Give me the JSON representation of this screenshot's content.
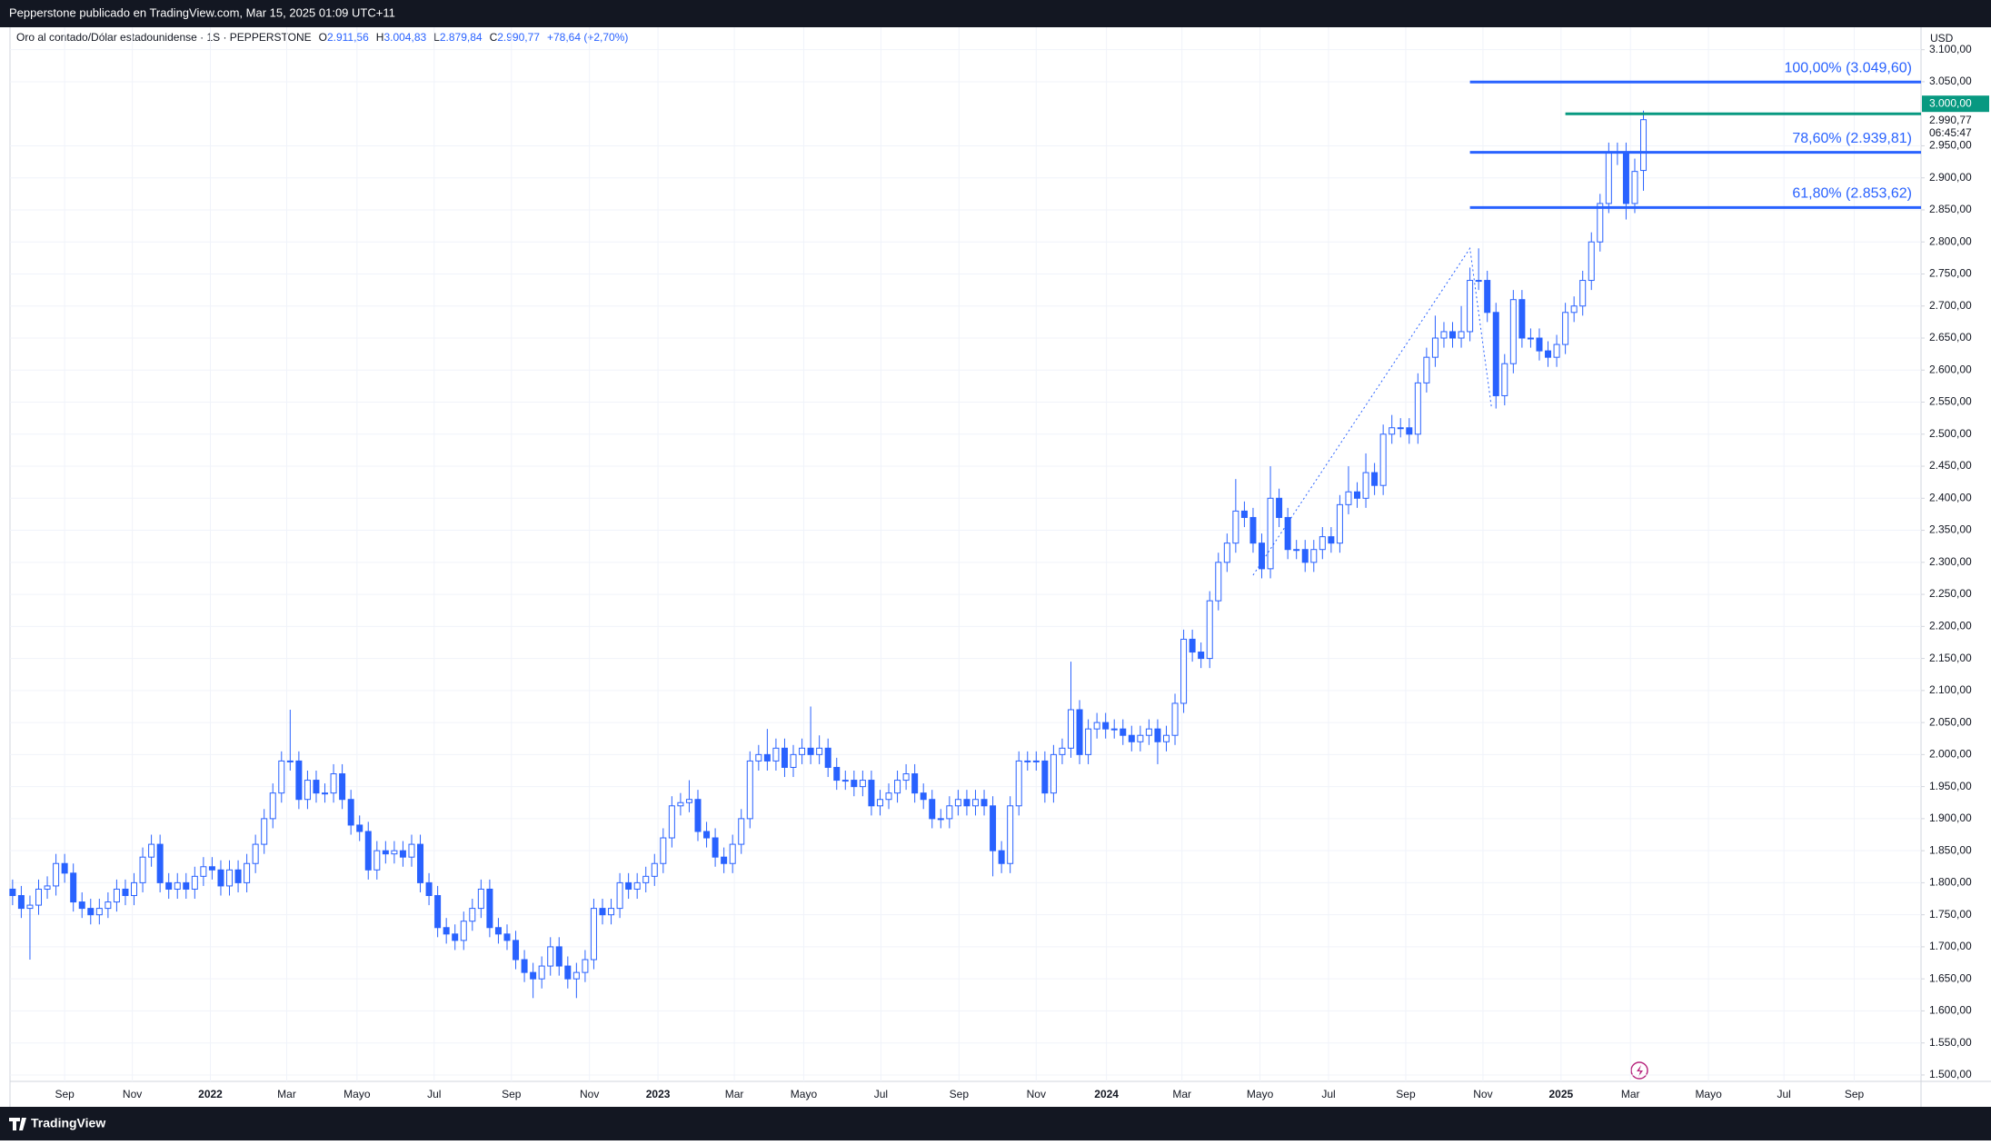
{
  "header": {
    "text": "Pepperstone publicado en TradingView.com, Mar 15, 2025 01:09 UTC+11"
  },
  "footer": {
    "brand": "TradingView"
  },
  "chart_data": {
    "type": "candlestick",
    "legend": {
      "title": "Oro al contado/Dólar estadounidense · 1S · PEPPERSTONE",
      "fields": [
        {
          "key": "O",
          "value": "2.911,56"
        },
        {
          "key": "H",
          "value": "3.004,83"
        },
        {
          "key": "L",
          "value": "2.879,84"
        },
        {
          "key": "C",
          "value": "2.990,77"
        }
      ],
      "change": "+78,64 (+2,70%)"
    },
    "currency": "USD",
    "color": "#2962ff",
    "up_fill": "#ffffff",
    "grid": true,
    "ylim": [
      1490,
      3135
    ],
    "xlim": [
      -0.3,
      220
    ],
    "yticks": [
      {
        "value": 1500,
        "label": "1.500,00"
      },
      {
        "value": 1550,
        "label": "1.550,00"
      },
      {
        "value": 1600,
        "label": "1.600,00"
      },
      {
        "value": 1650,
        "label": "1.650,00"
      },
      {
        "value": 1700,
        "label": "1.700,00"
      },
      {
        "value": 1750,
        "label": "1.750,00"
      },
      {
        "value": 1800,
        "label": "1.800,00"
      },
      {
        "value": 1850,
        "label": "1.850,00"
      },
      {
        "value": 1900,
        "label": "1.900,00"
      },
      {
        "value": 1950,
        "label": "1.950,00"
      },
      {
        "value": 2000,
        "label": "2.000,00"
      },
      {
        "value": 2050,
        "label": "2.050,00"
      },
      {
        "value": 2100,
        "label": "2.100,00"
      },
      {
        "value": 2150,
        "label": "2.150,00"
      },
      {
        "value": 2200,
        "label": "2.200,00"
      },
      {
        "value": 2250,
        "label": "2.250,00"
      },
      {
        "value": 2300,
        "label": "2.300,00"
      },
      {
        "value": 2350,
        "label": "2.350,00"
      },
      {
        "value": 2400,
        "label": "2.400,00"
      },
      {
        "value": 2450,
        "label": "2.450,00"
      },
      {
        "value": 2500,
        "label": "2.500,00"
      },
      {
        "value": 2550,
        "label": "2.550,00"
      },
      {
        "value": 2600,
        "label": "2.600,00"
      },
      {
        "value": 2650,
        "label": "2.650,00"
      },
      {
        "value": 2700,
        "label": "2.700,00"
      },
      {
        "value": 2750,
        "label": "2.750,00"
      },
      {
        "value": 2800,
        "label": "2.800,00"
      },
      {
        "value": 2850,
        "label": "2.850,00"
      },
      {
        "value": 2900,
        "label": "2.900,00"
      },
      {
        "value": 2950,
        "label": "2.950,00"
      },
      {
        "value": 3050,
        "label": "3.050,00"
      },
      {
        "value": 3100,
        "label": "3.100,00"
      }
    ],
    "xticks": [
      {
        "value": 6,
        "label": "Sep"
      },
      {
        "value": 13.8,
        "label": "Nov"
      },
      {
        "value": 22.8,
        "label": "2022"
      },
      {
        "value": 31.6,
        "label": "Mar"
      },
      {
        "value": 39.7,
        "label": "Mayo"
      },
      {
        "value": 48.6,
        "label": "Jul"
      },
      {
        "value": 57.5,
        "label": "Sep"
      },
      {
        "value": 66.5,
        "label": "Nov"
      },
      {
        "value": 74.4,
        "label": "2023"
      },
      {
        "value": 83.2,
        "label": "Mar"
      },
      {
        "value": 91.2,
        "label": "Mayo"
      },
      {
        "value": 100.1,
        "label": "Jul"
      },
      {
        "value": 109.1,
        "label": "Sep"
      },
      {
        "value": 118,
        "label": "Nov"
      },
      {
        "value": 126.1,
        "label": "2024"
      },
      {
        "value": 134.8,
        "label": "Mar"
      },
      {
        "value": 143.8,
        "label": "Mayo"
      },
      {
        "value": 151.7,
        "label": "Jul"
      },
      {
        "value": 160.6,
        "label": "Sep"
      },
      {
        "value": 169.5,
        "label": "Nov"
      },
      {
        "value": 178.5,
        "label": "2025"
      },
      {
        "value": 186.5,
        "label": "Mar"
      },
      {
        "value": 195.5,
        "label": "Mayo"
      },
      {
        "value": 204.2,
        "label": "Jul"
      },
      {
        "value": 212.3,
        "label": "Sep"
      }
    ],
    "open": [
      1790,
      1780,
      1760,
      1765,
      1790,
      1795,
      1830,
      1815,
      1770,
      1760,
      1750,
      1760,
      1770,
      1790,
      1780,
      1800,
      1840,
      1860,
      1800,
      1790,
      1800,
      1790,
      1810,
      1825,
      1820,
      1795,
      1820,
      1800,
      1830,
      1860,
      1900,
      1940,
      1990,
      1990,
      1930,
      1960,
      1940,
      1940,
      1970,
      1930,
      1890,
      1880,
      1820,
      1850,
      1845,
      1850,
      1840,
      1860,
      1800,
      1780,
      1730,
      1720,
      1710,
      1740,
      1760,
      1790,
      1730,
      1720,
      1710,
      1680,
      1660,
      1650,
      1670,
      1700,
      1670,
      1650,
      1660,
      1680,
      1760,
      1750,
      1760,
      1800,
      1790,
      1800,
      1810,
      1830,
      1870,
      1920,
      1925,
      1930,
      1880,
      1870,
      1840,
      1830,
      1860,
      1900,
      1990,
      2000,
      1990,
      2010,
      1980,
      2000,
      2010,
      2000,
      2010,
      1980,
      1960,
      1960,
      1950,
      1960,
      1920,
      1930,
      1940,
      1960,
      1970,
      1940,
      1930,
      1900,
      1900,
      1920,
      1930,
      1920,
      1930,
      1920,
      1850,
      1830,
      1920,
      1990,
      1990,
      1990,
      1940,
      2000,
      2010,
      2070,
      2000,
      2040,
      2050,
      2040,
      2040,
      2030,
      2020,
      2030,
      2040,
      2020,
      2030,
      2080,
      2180,
      2160,
      2150,
      2240,
      2300,
      2330,
      2380,
      2370,
      2330,
      2290,
      2400,
      2370,
      2320,
      2320,
      2300,
      2320,
      2340,
      2330,
      2390,
      2410,
      2400,
      2440,
      2420,
      2500,
      2510,
      2510,
      2500,
      2580,
      2620,
      2650,
      2660,
      2650,
      2660,
      2740,
      2740,
      2690,
      2560,
      2610,
      2710,
      2650,
      2650,
      2630,
      2620,
      2640,
      2690,
      2700,
      2740,
      2800,
      2860,
      2940,
      2940,
      2860,
      2911.56
    ],
    "high": [
      1805,
      1795,
      1780,
      1805,
      1810,
      1845,
      1845,
      1830,
      1785,
      1775,
      1775,
      1785,
      1805,
      1805,
      1815,
      1855,
      1875,
      1875,
      1815,
      1815,
      1815,
      1825,
      1840,
      1840,
      1835,
      1835,
      1835,
      1845,
      1875,
      1915,
      1955,
      2005,
      2070,
      2005,
      1975,
      1975,
      1955,
      1985,
      1985,
      1945,
      1905,
      1895,
      1865,
      1865,
      1865,
      1865,
      1875,
      1875,
      1815,
      1795,
      1745,
      1735,
      1755,
      1775,
      1805,
      1805,
      1745,
      1735,
      1725,
      1695,
      1675,
      1685,
      1715,
      1715,
      1685,
      1675,
      1695,
      1775,
      1775,
      1775,
      1815,
      1815,
      1815,
      1825,
      1845,
      1885,
      1935,
      1940,
      1960,
      1945,
      1895,
      1885,
      1855,
      1875,
      1915,
      2005,
      2015,
      2040,
      2025,
      2025,
      2015,
      2025,
      2075,
      2030,
      2025,
      1995,
      1975,
      1975,
      1975,
      1975,
      1945,
      1955,
      1975,
      1985,
      1985,
      1955,
      1945,
      1915,
      1935,
      1945,
      1945,
      1945,
      1945,
      1935,
      1865,
      1935,
      2005,
      2005,
      2005,
      2005,
      2015,
      2025,
      2145,
      2085,
      2055,
      2065,
      2065,
      2055,
      2055,
      2045,
      2045,
      2055,
      2055,
      2045,
      2095,
      2195,
      2195,
      2175,
      2255,
      2315,
      2345,
      2430,
      2395,
      2385,
      2345,
      2450,
      2415,
      2385,
      2335,
      2335,
      2335,
      2355,
      2355,
      2405,
      2450,
      2425,
      2470,
      2455,
      2515,
      2530,
      2525,
      2525,
      2595,
      2635,
      2685,
      2675,
      2675,
      2700,
      2760,
      2790,
      2755,
      2705,
      2625,
      2725,
      2725,
      2665,
      2665,
      2645,
      2655,
      2705,
      2715,
      2755,
      2815,
      2875,
      2955,
      2955,
      2955,
      2930,
      3004.83
    ],
    "low": [
      1765,
      1745,
      1680,
      1750,
      1775,
      1780,
      1800,
      1755,
      1745,
      1735,
      1735,
      1745,
      1755,
      1765,
      1765,
      1785,
      1825,
      1785,
      1775,
      1775,
      1775,
      1775,
      1795,
      1805,
      1780,
      1780,
      1785,
      1785,
      1815,
      1845,
      1885,
      1925,
      1975,
      1915,
      1915,
      1925,
      1925,
      1925,
      1915,
      1875,
      1865,
      1805,
      1805,
      1830,
      1830,
      1825,
      1825,
      1785,
      1765,
      1715,
      1705,
      1695,
      1695,
      1725,
      1745,
      1715,
      1705,
      1695,
      1665,
      1645,
      1620,
      1635,
      1655,
      1655,
      1635,
      1620,
      1645,
      1665,
      1735,
      1735,
      1745,
      1775,
      1775,
      1785,
      1795,
      1815,
      1855,
      1905,
      1910,
      1865,
      1855,
      1825,
      1815,
      1815,
      1845,
      1885,
      1975,
      1975,
      1975,
      1965,
      1965,
      1985,
      1985,
      1985,
      1965,
      1945,
      1945,
      1935,
      1935,
      1905,
      1905,
      1915,
      1925,
      1945,
      1925,
      1915,
      1885,
      1885,
      1885,
      1905,
      1905,
      1905,
      1905,
      1810,
      1815,
      1815,
      1905,
      1975,
      1975,
      1925,
      1925,
      1985,
      1995,
      1985,
      1985,
      2025,
      2025,
      2025,
      2015,
      2005,
      2005,
      2015,
      1985,
      2005,
      2015,
      2065,
      2145,
      2135,
      2135,
      2225,
      2285,
      2315,
      2355,
      2315,
      2275,
      2275,
      2355,
      2305,
      2305,
      2285,
      2285,
      2305,
      2315,
      2315,
      2375,
      2385,
      2385,
      2405,
      2405,
      2485,
      2495,
      2485,
      2485,
      2565,
      2605,
      2635,
      2635,
      2635,
      2645,
      2725,
      2675,
      2540,
      2545,
      2595,
      2635,
      2635,
      2615,
      2605,
      2605,
      2625,
      2675,
      2685,
      2725,
      2785,
      2845,
      2920,
      2835,
      2845,
      2879.84
    ],
    "close": [
      1780,
      1760,
      1765,
      1790,
      1795,
      1830,
      1815,
      1770,
      1760,
      1750,
      1760,
      1770,
      1790,
      1780,
      1800,
      1840,
      1860,
      1800,
      1790,
      1800,
      1790,
      1810,
      1825,
      1820,
      1795,
      1820,
      1800,
      1830,
      1860,
      1900,
      1940,
      1990,
      1990,
      1930,
      1960,
      1940,
      1940,
      1970,
      1930,
      1890,
      1880,
      1820,
      1850,
      1845,
      1850,
      1840,
      1860,
      1800,
      1780,
      1730,
      1720,
      1710,
      1740,
      1760,
      1790,
      1730,
      1720,
      1710,
      1680,
      1660,
      1650,
      1670,
      1700,
      1670,
      1650,
      1660,
      1680,
      1760,
      1750,
      1760,
      1800,
      1790,
      1800,
      1810,
      1830,
      1870,
      1920,
      1925,
      1930,
      1880,
      1870,
      1840,
      1830,
      1860,
      1900,
      1990,
      2000,
      1990,
      2010,
      1980,
      2000,
      2010,
      2000,
      2010,
      1980,
      1960,
      1960,
      1950,
      1960,
      1920,
      1930,
      1940,
      1960,
      1970,
      1940,
      1930,
      1900,
      1900,
      1920,
      1930,
      1920,
      1930,
      1920,
      1850,
      1830,
      1920,
      1990,
      1990,
      1990,
      1940,
      2000,
      2010,
      2070,
      2000,
      2040,
      2050,
      2040,
      2040,
      2030,
      2020,
      2030,
      2040,
      2020,
      2030,
      2080,
      2180,
      2160,
      2150,
      2240,
      2300,
      2330,
      2380,
      2370,
      2330,
      2290,
      2400,
      2370,
      2320,
      2320,
      2300,
      2320,
      2340,
      2330,
      2390,
      2410,
      2400,
      2440,
      2420,
      2500,
      2510,
      2510,
      2500,
      2580,
      2620,
      2650,
      2660,
      2650,
      2660,
      2740,
      2740,
      2690,
      2560,
      2610,
      2710,
      2650,
      2650,
      2630,
      2620,
      2640,
      2690,
      2700,
      2740,
      2800,
      2860,
      2940,
      2940,
      2860,
      2910,
      2990.77
    ],
    "trend": {
      "x": [
        143,
        168,
        170.5
      ],
      "y": [
        2280,
        2790,
        2540
      ]
    },
    "fib_levels": [
      {
        "value": 3049.6,
        "label": "100,00% (3.049,60)",
        "start": 168
      },
      {
        "value": 2939.81,
        "label": "78,60% (2.939,81)",
        "start": 168
      },
      {
        "value": 2853.62,
        "label": "61,80% (2.853,62)",
        "start": 168
      }
    ],
    "price_line": {
      "value": 3000,
      "label": "3.000,00",
      "color": "#089981",
      "start": 179
    },
    "last_price": {
      "value": 2990.77,
      "label": "2.990,77",
      "countdown": "06:45:47"
    }
  }
}
